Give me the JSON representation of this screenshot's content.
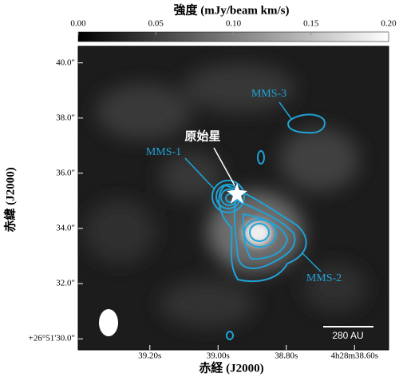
{
  "chart_data": {
    "type": "image",
    "colorbar_label": "強度 (mJy/beam km/s)",
    "clim": [
      0,
      0.2
    ],
    "cticks": [
      {
        "value": 0,
        "label": "0.00"
      },
      0.05,
      {
        "value": 0.1,
        "label": "0.10"
      },
      0.15,
      {
        "value": 0.2,
        "label": "0.20"
      }
    ],
    "xlabel": "赤経 (J2000)",
    "ylabel": "赤緯 (J2000)",
    "xlim": [
      39.41,
      38.5
    ],
    "xticks": [
      {
        "value": 39.2,
        "label": "39.20s"
      },
      {
        "value": 39.0,
        "label": "39.00s"
      },
      {
        "value": 38.8,
        "label": "38.80s"
      },
      {
        "value": 38.6,
        "label": "4h28m38.60s"
      }
    ],
    "ylim": [
      29.6,
      40.6
    ],
    "yticks": [
      {
        "value": 30,
        "label": "+26°51'30.0\""
      },
      {
        "value": 32,
        "label": "32.0\""
      },
      {
        "value": 34,
        "label": "34.0\""
      },
      {
        "value": 36,
        "label": "36.0\""
      },
      {
        "value": 38,
        "label": "38.0\""
      },
      {
        "value": 40,
        "label": "40.0\""
      }
    ],
    "annotations": [
      "原始星",
      "MMS-1",
      "MMS-2",
      "MMS-3",
      "280 AU"
    ],
    "contour_color": "#1fa3d6"
  }
}
